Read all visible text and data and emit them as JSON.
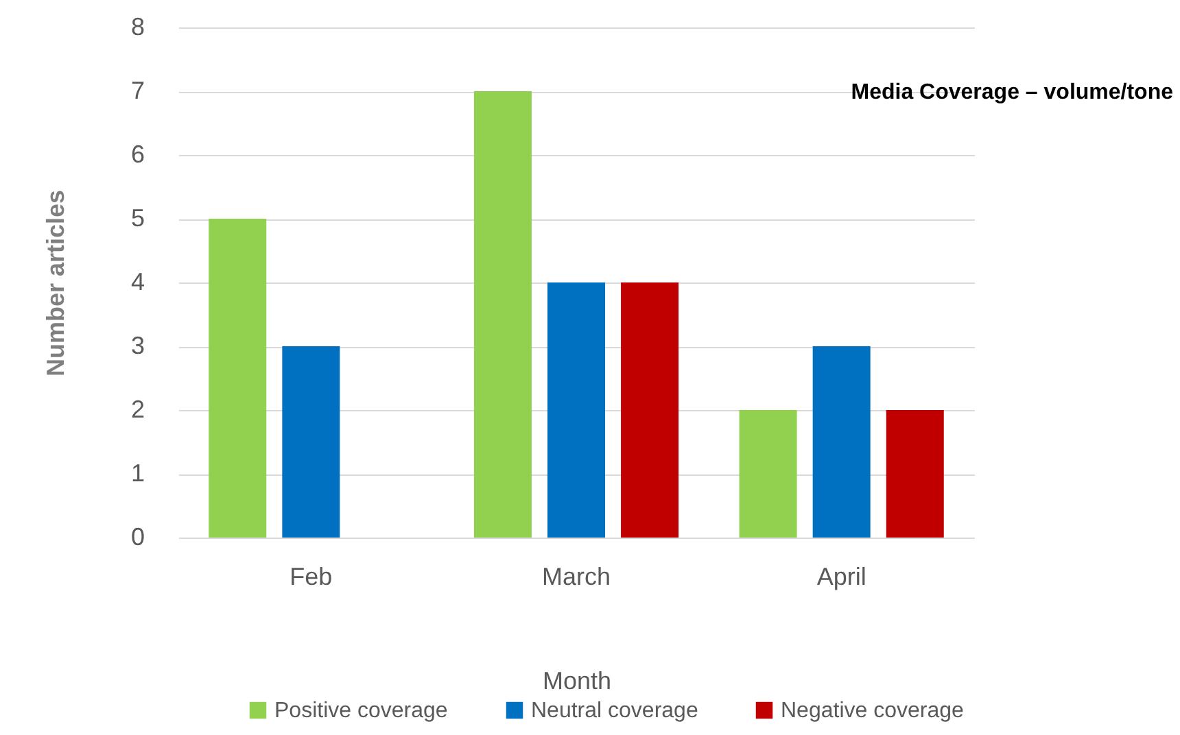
{
  "chart_data": {
    "type": "bar",
    "title": "Media Coverage – volume/tone",
    "xlabel": "Month",
    "ylabel": "Number articles",
    "categories": [
      "Feb",
      "March",
      "April"
    ],
    "series": [
      {
        "name": "Positive coverage",
        "color": "#92d050",
        "values": [
          5,
          7,
          2
        ]
      },
      {
        "name": "Neutral coverage",
        "color": "#0070c0",
        "values": [
          3,
          4,
          3
        ]
      },
      {
        "name": "Negative coverage",
        "color": "#c00000",
        "values": [
          null,
          4,
          2
        ]
      }
    ],
    "ylim": [
      0,
      8
    ],
    "yticks": [
      0,
      1,
      2,
      3,
      4,
      5,
      6,
      7,
      8
    ],
    "grid": "y",
    "legend": "bottom"
  }
}
